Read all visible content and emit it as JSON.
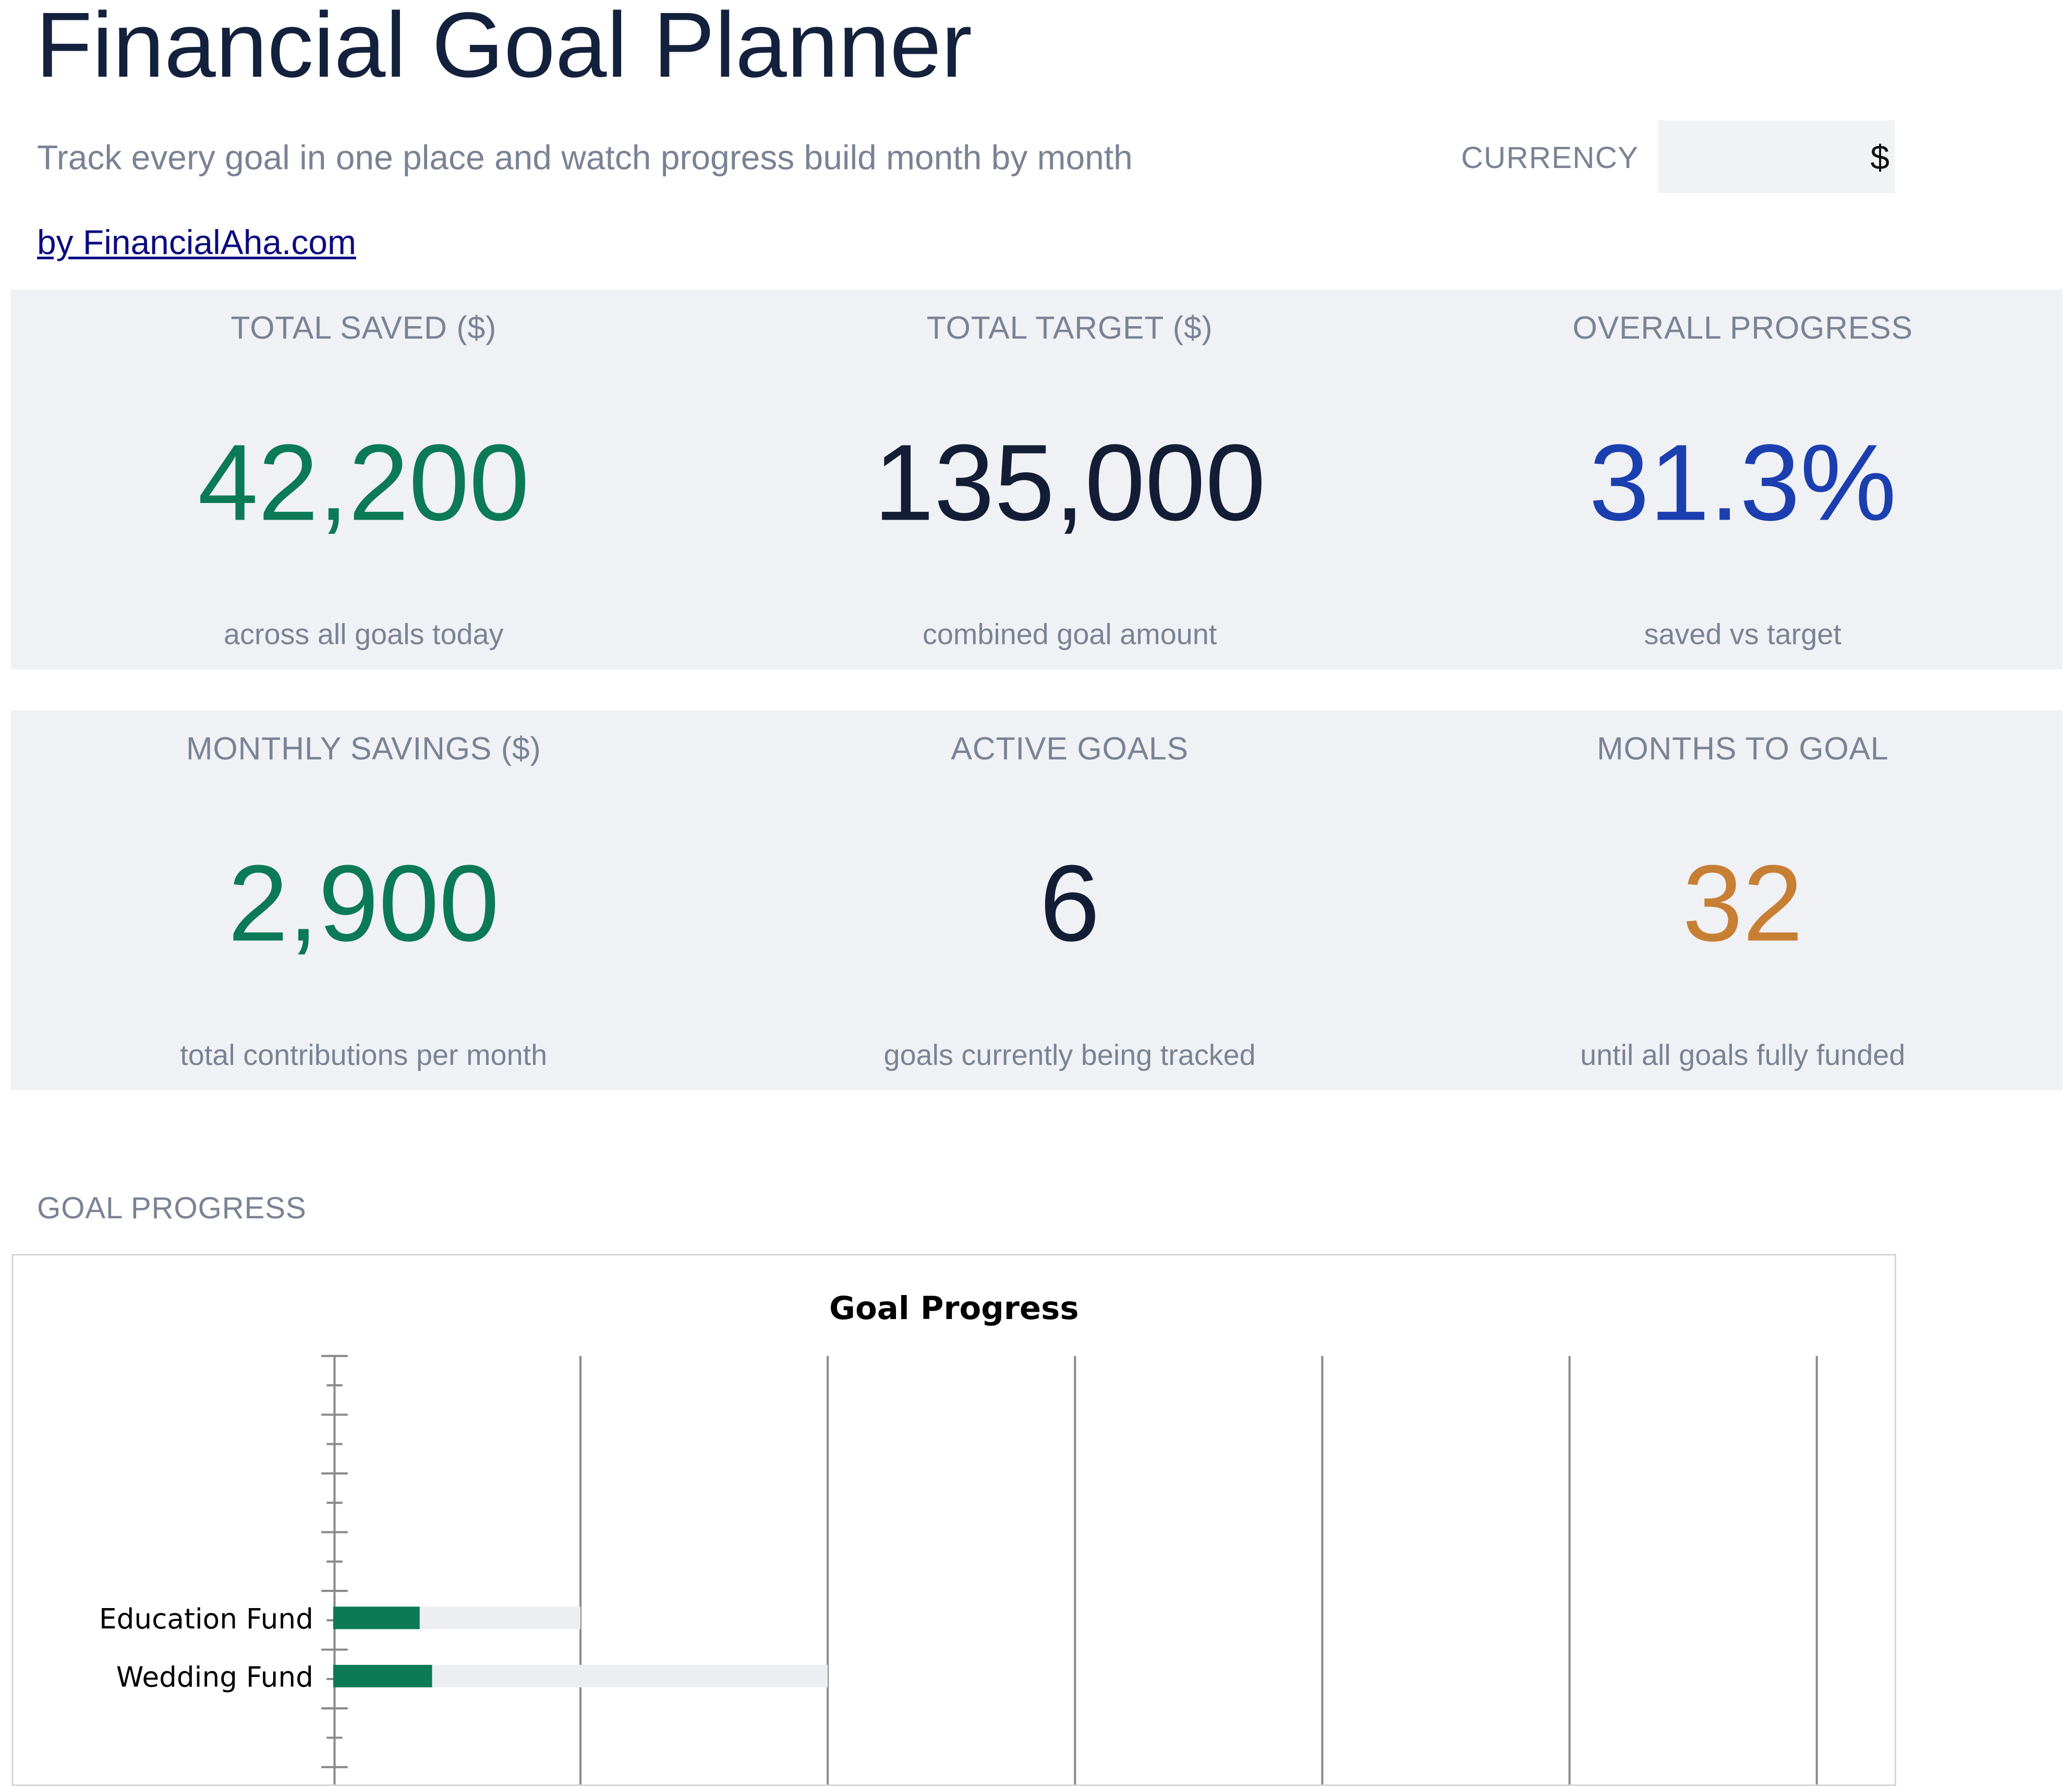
{
  "header": {
    "title": "Financial Goal Planner",
    "subtitle": "Track every goal in one place and watch progress build month by month",
    "byline": "by FinancialAha.com",
    "currency_label": "CURRENCY",
    "currency_value": "$"
  },
  "kpis": {
    "total_saved": {
      "label": "TOTAL SAVED ($)",
      "value": "42,200",
      "sub": "across all goals today",
      "color": "#0b7a55"
    },
    "total_target": {
      "label": "TOTAL TARGET ($)",
      "value": "135,000",
      "sub": "combined goal amount",
      "color": "#141d36"
    },
    "overall_progress": {
      "label": "OVERALL PROGRESS",
      "value": "31.3%",
      "sub": "saved vs target",
      "color": "#1c3fb0"
    },
    "monthly_savings": {
      "label": "MONTHLY SAVINGS ($)",
      "value": "2,900",
      "sub": "total contributions per month",
      "color": "#0b7a55"
    },
    "active_goals": {
      "label": "ACTIVE GOALS",
      "value": "6",
      "sub": "goals currently being tracked",
      "color": "#141d36"
    },
    "months_to_goal": {
      "label": "MONTHS TO GOAL",
      "value": "32",
      "sub": "until all goals fully funded",
      "color": "#c77f34"
    }
  },
  "goal_section": {
    "heading": "GOAL PROGRESS"
  },
  "chart_data": {
    "type": "bar",
    "orientation": "horizontal",
    "stacked": true,
    "title": "Goal Progress",
    "categories": [
      "Education Fund",
      "Wedding Fund"
    ],
    "series": [
      {
        "values": [
          3500,
          4000
        ],
        "color": "#0b7a55"
      },
      {
        "values": [
          6500,
          16000
        ],
        "color": "#eceef1"
      }
    ],
    "xlim": [
      0,
      60000
    ],
    "x_gridline_step": 10000,
    "grid": true,
    "x_tick_labels_visible": false,
    "legend": "none"
  }
}
